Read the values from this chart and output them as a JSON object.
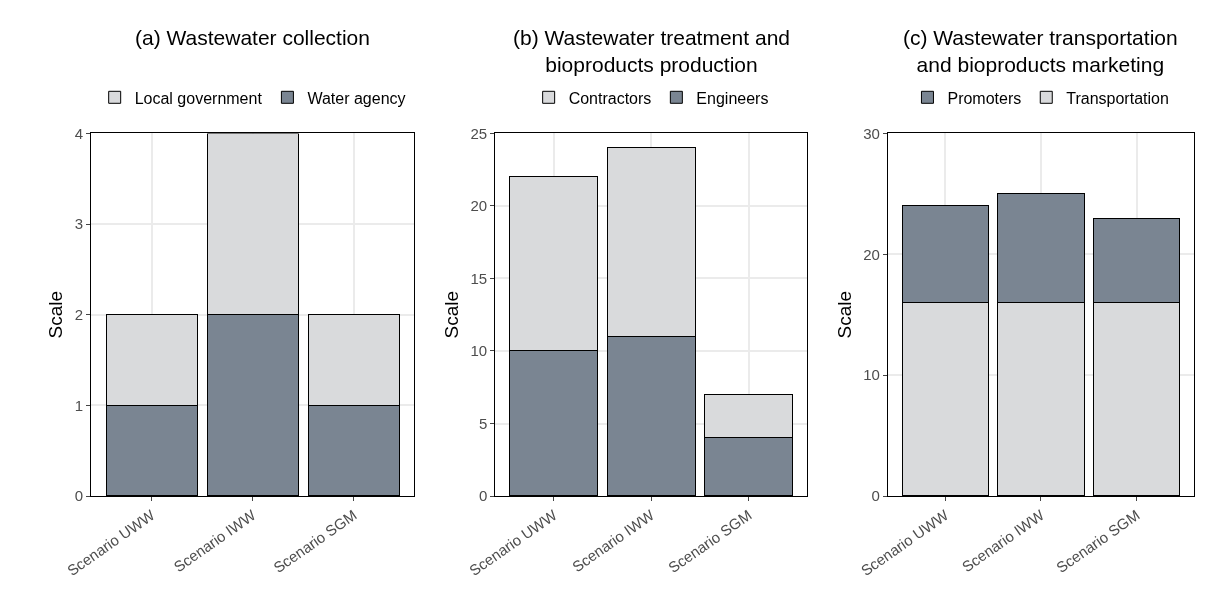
{
  "chart_data": [
    {
      "type": "bar",
      "title": "(a) Wastewater collection",
      "ylabel": "Scale",
      "categories": [
        "Scenario UWW",
        "Scenario IWW",
        "Scenario SGM"
      ],
      "stacked": true,
      "series": [
        {
          "name": "Water agency",
          "color": "#7a8592",
          "values": [
            1,
            2,
            1
          ]
        },
        {
          "name": "Local government",
          "color": "#d9dadc",
          "values": [
            1,
            2,
            1
          ]
        }
      ],
      "ylim": [
        0,
        4
      ],
      "yticks": [
        0,
        1,
        2,
        3,
        4
      ],
      "grid": true,
      "legend": "top"
    },
    {
      "type": "bar",
      "title": "(b) Wastewater treatment and\nbioproducts production",
      "ylabel": "Scale",
      "categories": [
        "Scenario UWW",
        "Scenario IWW",
        "Scenario SGM"
      ],
      "stacked": true,
      "series": [
        {
          "name": "Engineers",
          "color": "#7a8592",
          "values": [
            10,
            11,
            4
          ]
        },
        {
          "name": "Contractors",
          "color": "#d9dadc",
          "values": [
            12,
            13,
            3
          ]
        }
      ],
      "ylim": [
        0,
        25
      ],
      "yticks": [
        0,
        5,
        10,
        15,
        20,
        25
      ],
      "grid": true,
      "legend": "top"
    },
    {
      "type": "bar",
      "title": "(c) Wastewater transportation\nand bioproducts marketing",
      "ylabel": "Scale",
      "categories": [
        "Scenario UWW",
        "Scenario IWW",
        "Scenario SGM"
      ],
      "stacked": true,
      "series": [
        {
          "name": "Transportation",
          "color": "#d9dadc",
          "values": [
            16,
            16,
            16
          ]
        },
        {
          "name": "Promoters",
          "color": "#7a8592",
          "values": [
            8,
            9,
            7
          ]
        }
      ],
      "ylim": [
        0,
        30
      ],
      "yticks": [
        0,
        10,
        20,
        30
      ],
      "grid": true,
      "legend": "top"
    }
  ]
}
